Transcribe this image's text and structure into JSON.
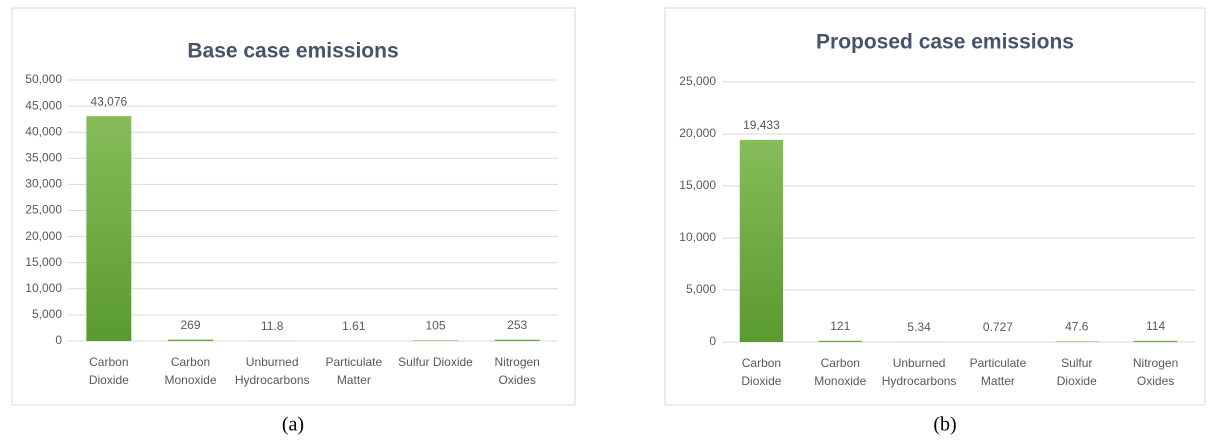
{
  "chart_data": [
    {
      "type": "bar",
      "title": "Base case emissions",
      "caption": "(a)",
      "categories": [
        "Carbon Dioxide",
        "Carbon Monoxide",
        "Unburned Hydrocarbons",
        "Particulate Matter",
        "Sulfur Dioxide",
        "Nitrogen Oxides"
      ],
      "values": [
        43076,
        269,
        11.8,
        1.61,
        105,
        253
      ],
      "value_labels": [
        "43,076",
        "269",
        "11.8",
        "1.61",
        "105",
        "253"
      ],
      "color": "#6aa83a",
      "grid": true,
      "ylim": [
        0,
        50000
      ],
      "yticks": [
        0,
        {
          "value": 5000,
          "label": "5,000"
        },
        {
          "value": 10000,
          "label": "10,000"
        },
        {
          "value": 15000,
          "label": "15,000"
        },
        {
          "value": 20000,
          "label": "20,000"
        },
        {
          "value": 25000,
          "label": "25,000"
        },
        {
          "value": 30000,
          "label": "30,000"
        },
        {
          "value": 35000,
          "label": "35,000"
        },
        {
          "value": 40000,
          "label": "40,000"
        },
        {
          "value": 45000,
          "label": "45,000"
        },
        {
          "value": 50000,
          "label": "50,000"
        }
      ]
    },
    {
      "type": "bar",
      "title": "Proposed case emissions",
      "caption": "(b)",
      "categories": [
        "Carbon Dioxide",
        "Carbon Monoxide",
        "Unburned Hydrocarbons",
        "Particulate Matter",
        "Sulfur Dioxide",
        "Nitrogen Oxides"
      ],
      "values": [
        19433,
        121,
        5.34,
        0.727,
        47.6,
        114
      ],
      "value_labels": [
        "19,433",
        "121",
        "5.34",
        "0.727",
        "47.6",
        "114"
      ],
      "color": "#6aa83a",
      "grid": true,
      "ylim": [
        0,
        25000
      ],
      "yticks": [
        0,
        {
          "value": 5000,
          "label": "5,000"
        },
        {
          "value": 10000,
          "label": "10,000"
        },
        {
          "value": 15000,
          "label": "15,000"
        },
        {
          "value": 20000,
          "label": "20,000"
        },
        {
          "value": 25000,
          "label": "25,000"
        }
      ]
    }
  ]
}
